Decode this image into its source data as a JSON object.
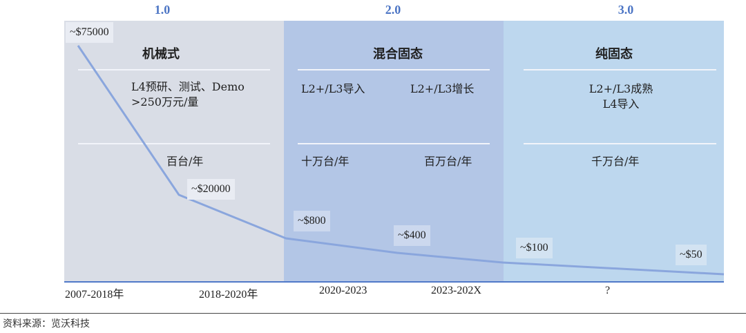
{
  "phases": [
    {
      "label": "1.0",
      "title": "机械式",
      "bg": "#d9dde6"
    },
    {
      "label": "2.0",
      "title": "混合固态",
      "bg": "#b3c6e6"
    },
    {
      "label": "3.0",
      "title": "纯固态",
      "bg": "#bdd7ee"
    }
  ],
  "descriptions": {
    "p1": "L4预研、测试、Demo",
    "p1b": ">250万元/量",
    "p2a": "L2+/L3导入",
    "p2b": "L2+/L3增长",
    "p3a": "L2+/L3成熟",
    "p3b": "L4导入"
  },
  "volumes": {
    "p1": "百台/年",
    "p2a": "十万台/年",
    "p2b": "百万台/年",
    "p3": "千万台/年"
  },
  "prices": [
    "~$75000",
    "~$20000",
    "~$800",
    "~$400",
    "~$100",
    "~$50"
  ],
  "price_values_usd": [
    75000,
    20000,
    800,
    400,
    100,
    50
  ],
  "periods": [
    "2007-2018年",
    "2018-2020年",
    "2020-2023",
    "2023-202X",
    "?"
  ],
  "source": "资料来源：览沃科技",
  "colors": {
    "accent": "#4b74c4",
    "curve": "#8aa6dd",
    "tag_bg": "#e9ecf3",
    "axis": "#4f78c8"
  }
}
